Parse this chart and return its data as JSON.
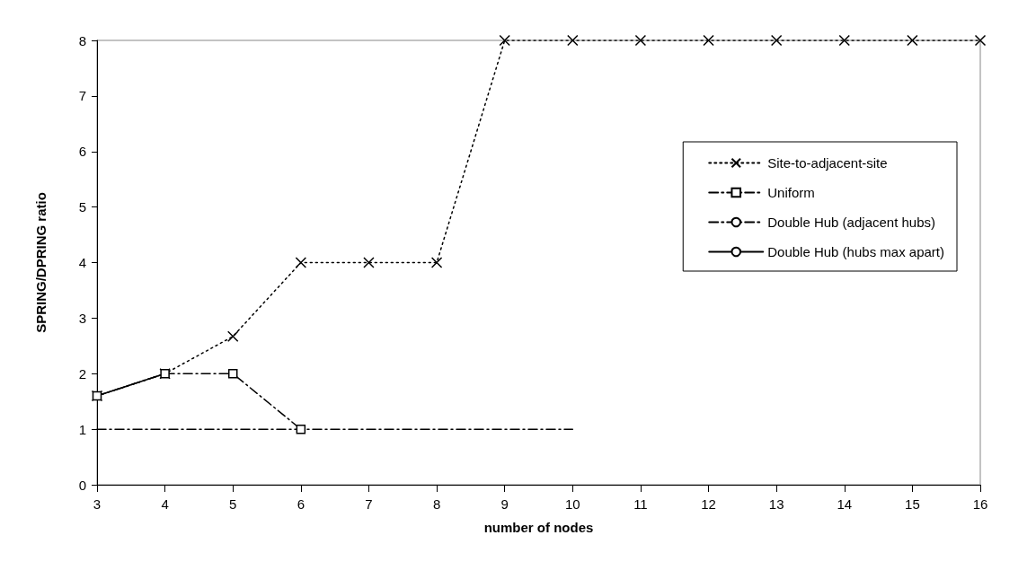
{
  "chart_data": {
    "type": "line",
    "xlabel": "number of nodes",
    "ylabel": "SPRING/DPRING ratio",
    "xlim": [
      3,
      16
    ],
    "xticks": [
      3,
      4,
      5,
      6,
      7,
      8,
      9,
      10,
      11,
      12,
      13,
      14,
      15,
      16
    ],
    "ylim": [
      0,
      8
    ],
    "yticks": [
      0,
      1,
      2,
      3,
      4,
      5,
      6,
      7,
      8
    ],
    "grid": false,
    "legend": "right",
    "series": [
      {
        "name": "Site-to-adjacent-site",
        "color": "#000000",
        "marker": "cross",
        "line_style": "dotted",
        "x": [
          3,
          4,
          5,
          6,
          7,
          8,
          9,
          10,
          11,
          12,
          13,
          14,
          15,
          16
        ],
        "values": [
          1.6,
          2,
          2.67,
          4,
          4,
          4,
          8,
          8,
          8,
          8,
          8,
          8,
          8,
          8
        ]
      },
      {
        "name": "Uniform",
        "color": "#000000",
        "marker": "square",
        "line_style": "dashed",
        "x": [
          3,
          4,
          5,
          6
        ],
        "values": [
          1.6,
          2,
          2,
          1
        ]
      },
      {
        "name": "Double Hub (adjacent hubs)",
        "color": "#000000",
        "marker": "none",
        "line_style": "dashed",
        "x": [
          3,
          4,
          5,
          6,
          7,
          8,
          9,
          10
        ],
        "values": [
          1,
          1,
          1,
          1,
          1,
          1,
          1,
          1
        ]
      },
      {
        "name": "Double Hub (hubs max apart)",
        "color": "#000000",
        "marker": "none",
        "line_style": "solid",
        "x": [
          3,
          4
        ],
        "values": [
          1.6,
          2
        ]
      }
    ]
  }
}
